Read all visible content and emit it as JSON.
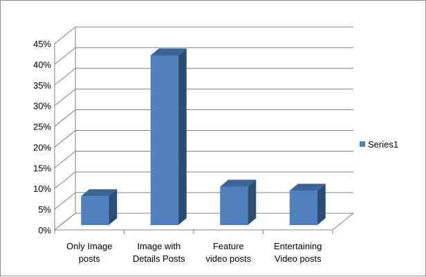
{
  "chart_data": {
    "type": "bar",
    "categories": [
      "Only Image posts",
      "Image with Details Posts",
      "Feature video posts",
      "Entertaining Video posts"
    ],
    "category_label_lines": [
      [
        "Only Image",
        "posts"
      ],
      [
        "Image with",
        "Details Posts"
      ],
      [
        "Feature",
        "video posts"
      ],
      [
        "Entertaining",
        "Video posts"
      ]
    ],
    "series": [
      {
        "name": "Series1",
        "values": [
          0.09,
          0.43,
          0.113,
          0.103
        ]
      }
    ],
    "y_ticks": [
      "0%",
      "5%",
      "10%",
      "15%",
      "20%",
      "25%",
      "30%",
      "35%",
      "40%",
      "45%"
    ],
    "ylim": [
      0,
      0.45
    ],
    "grid": true,
    "legend_position": "right",
    "title": "",
    "xlabel": "",
    "ylabel": "",
    "colors": {
      "bar_front": "#4f81bd",
      "bar_side": "#2c4d75",
      "bar_top": "#3a6596",
      "grid": "#808080",
      "wall": "#808080"
    }
  }
}
